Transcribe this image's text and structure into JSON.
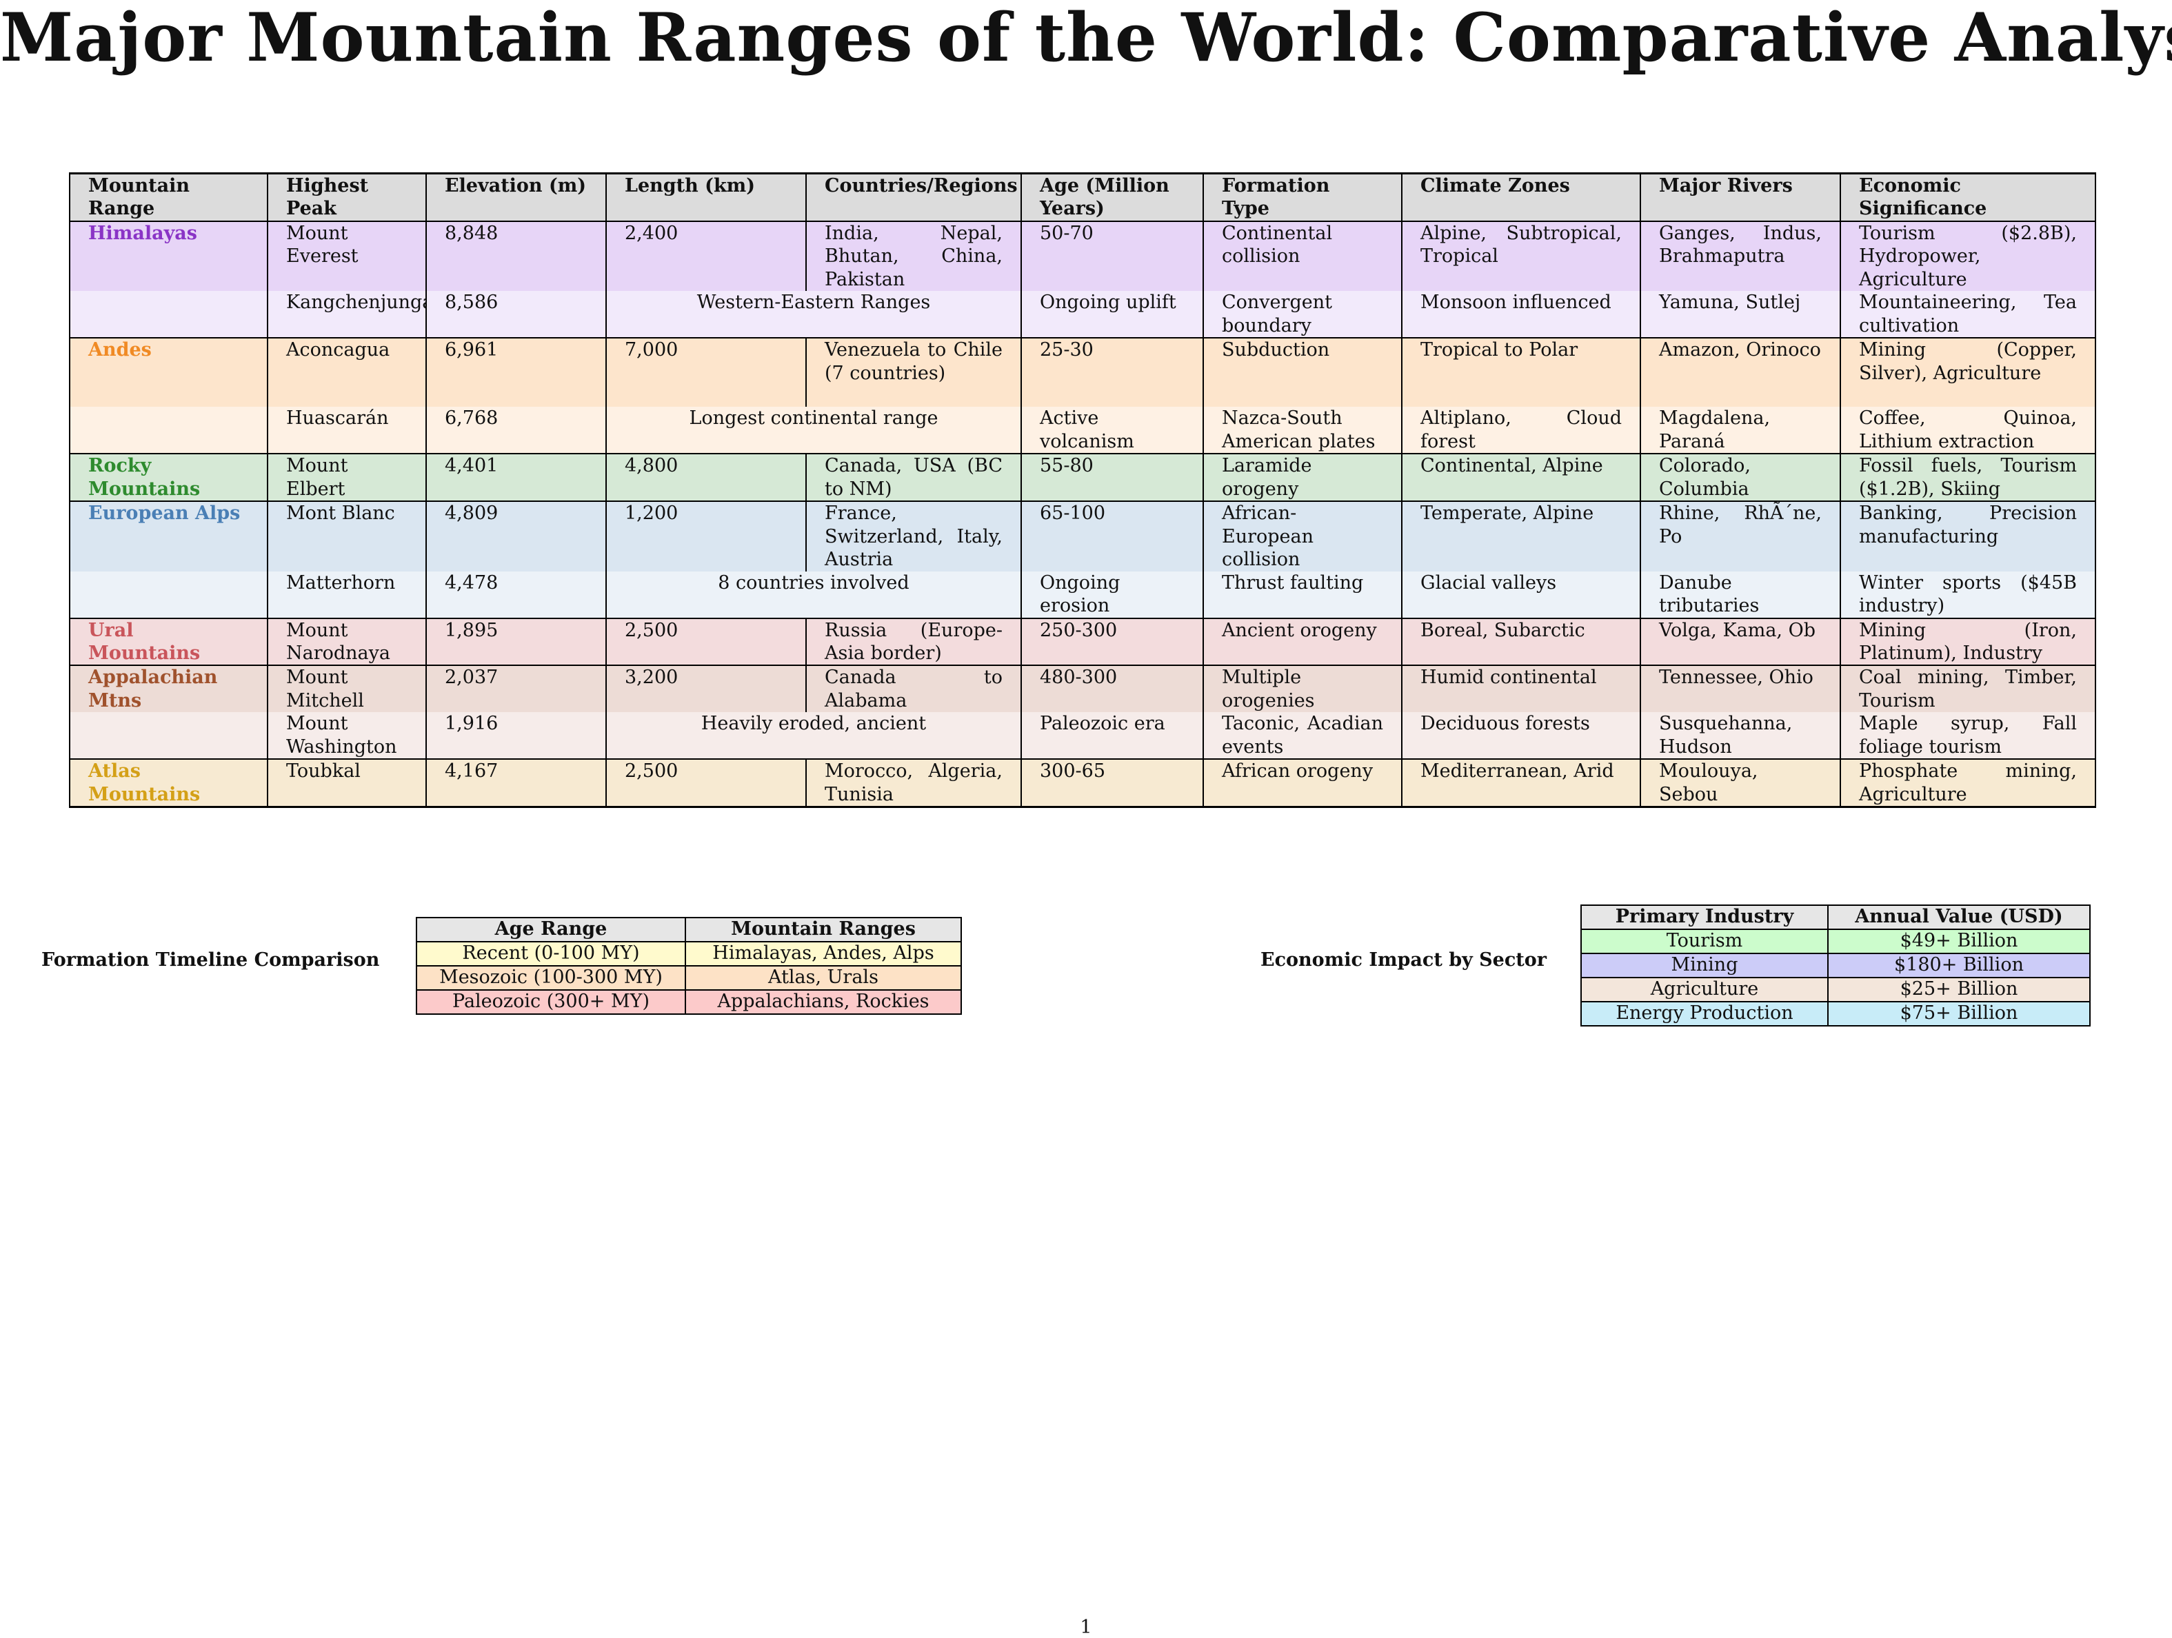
{
  "title": "Major Mountain Ranges of the World: Comparative Analysis",
  "main_table": {
    "headers": [
      "Mountain Range",
      "Highest Peak",
      "Elevation (m)",
      "Length (km)",
      "Countries/Regions",
      "Age (Million Years)",
      "Formation Type",
      "Climate Zones",
      "Major Rivers",
      "Economic Significance"
    ],
    "rows": [
      {
        "range": "Himalayas",
        "peak": "Mount Everest",
        "elevation": "8,848",
        "length": "2,400",
        "countries": "India, Nepal, Bhutan, China, Pakistan",
        "age": "50-70",
        "formation": "Continental collision",
        "climate": "Alpine, Subtropical, Tropical",
        "rivers": "Ganges, Indus, Brahmaputra",
        "economic": "Tourism ($2.8B), Hydropower, Agriculture",
        "color": "#e7d5f7",
        "name_color": "#8a35c6"
      },
      {
        "range": "",
        "peak": "Kangchenjunga",
        "elevation": "8,586",
        "span": "Western-Eastern Ranges",
        "age": "Ongoing uplift",
        "formation": "Convergent boundary",
        "climate": "Monsoon influenced",
        "rivers": "Yamuna, Sutlej",
        "economic": "Mountaineering, Tea cultivation",
        "color": "#f2eafb"
      },
      {
        "range": "Andes",
        "peak": "Aconcagua",
        "elevation": "6,961",
        "length": "7,000",
        "countries": "Venezuela to Chile (7 countries)",
        "age": "25-30",
        "formation": "Subduction",
        "climate": "Tropical to Polar",
        "rivers": "Amazon, Orinoco",
        "economic": "Mining (Copper, Silver), Agriculture",
        "color": "#fde5cc",
        "name_color": "#f08a24"
      },
      {
        "range": "",
        "peak": "Huascarán",
        "elevation": "6,768",
        "span": "Longest continental range",
        "age": "Active volcanism",
        "formation": "Nazca-South American plates",
        "climate": "Altiplano, Cloud forest",
        "rivers": "Magdalena, Paraná",
        "economic": "Coffee, Quinoa, Lithium extraction",
        "color": "#fef1e4"
      },
      {
        "range": "Rocky Mountains",
        "peak": "Mount Elbert",
        "elevation": "4,401",
        "length": "4,800",
        "countries": "Canada, USA (BC to NM)",
        "age": "55-80",
        "formation": "Laramide orogeny",
        "climate": "Continental, Alpine",
        "rivers": "Colorado, Columbia",
        "economic": "Fossil fuels, Tourism ($1.2B), Skiing",
        "color": "#d6e9d6",
        "name_color": "#2e8b2e"
      },
      {
        "range": "European Alps",
        "peak": "Mont Blanc",
        "elevation": "4,809",
        "length": "1,200",
        "countries": "France, Switzerland, Italy, Austria",
        "age": "65-100",
        "formation": "African-European collision",
        "climate": "Temperate, Alpine",
        "rivers": "Rhine, RhÃ´ne, Po",
        "economic": "Banking, Precision manufacturing",
        "color": "#dae6f1",
        "name_color": "#4a7fb5"
      },
      {
        "range": "",
        "peak": "Matterhorn",
        "elevation": "4,478",
        "span": "8 countries involved",
        "age": "Ongoing erosion",
        "formation": "Thrust faulting",
        "climate": "Glacial valleys",
        "rivers": "Danube tributaries",
        "economic": "Winter sports ($45B industry)",
        "color": "#ecf2f8"
      },
      {
        "range": "Ural Mountains",
        "peak": "Mount Narodnaya",
        "elevation": "1,895",
        "length": "2,500",
        "countries": "Russia (Europe-Asia border)",
        "age": "250-300",
        "formation": "Ancient orogeny",
        "climate": "Boreal, Subarctic",
        "rivers": "Volga, Kama, Ob",
        "economic": "Mining (Iron, Platinum), Industry",
        "color": "#f3dcdd",
        "name_color": "#c9555b"
      },
      {
        "range": "Appalachian Mtns",
        "peak": "Mount Mitchell",
        "elevation": "2,037",
        "length": "3,200",
        "countries": "Canada to Alabama",
        "age": "480-300",
        "formation": "Multiple orogenies",
        "climate": "Humid continental",
        "rivers": "Tennessee, Ohio",
        "economic": "Coal mining, Timber, Tourism",
        "color": "#eddcd6",
        "name_color": "#a0522d"
      },
      {
        "range": "",
        "peak": "Mount Washington",
        "elevation": "1,916",
        "span": "Heavily eroded, ancient",
        "age": "Paleozoic era",
        "formation": "Taconic, Acadian events",
        "climate": "Deciduous forests",
        "rivers": "Susquehanna, Hudson",
        "economic": "Maple syrup, Fall foliage tourism",
        "color": "#f6ecea"
      },
      {
        "range": "Atlas Mountains",
        "peak": "Toubkal",
        "elevation": "4,167",
        "length": "2,500",
        "countries": "Morocco, Algeria, Tunisia",
        "age": "300-65",
        "formation": "African orogeny",
        "climate": "Mediterranean, Arid",
        "rivers": "Moulouya, Sebou",
        "economic": "Phosphate mining, Agriculture",
        "color": "#f7ead2",
        "name_color": "#d4a017"
      }
    ]
  },
  "timeline": {
    "caption": "Formation Timeline Comparison",
    "headers": [
      "Age Range",
      "Mountain Ranges"
    ],
    "rows": [
      {
        "age": "Recent (0-100 MY)",
        "ranges": "Himalayas, Andes, Alps",
        "color": "#fffacd"
      },
      {
        "age": "Mesozoic (100-300 MY)",
        "ranges": "Atlas, Urals",
        "color": "#fde2c6"
      },
      {
        "age": "Paleozoic (300+ MY)",
        "ranges": "Appalachians, Rockies",
        "color": "#fccaca"
      }
    ]
  },
  "economic": {
    "caption": "Economic Impact by Sector",
    "headers": [
      "Primary Industry",
      "Annual Value (USD)"
    ],
    "rows": [
      {
        "industry": "Tourism",
        "value": "$49+ Billion",
        "color": "#ccfccc"
      },
      {
        "industry": "Mining",
        "value": "$180+ Billion",
        "color": "#ccccf8"
      },
      {
        "industry": "Agriculture",
        "value": "$25+ Billion",
        "color": "#f3e6db"
      },
      {
        "industry": "Energy Production",
        "value": "$75+ Billion",
        "color": "#c8ecf8"
      }
    ]
  },
  "page_number": "1"
}
